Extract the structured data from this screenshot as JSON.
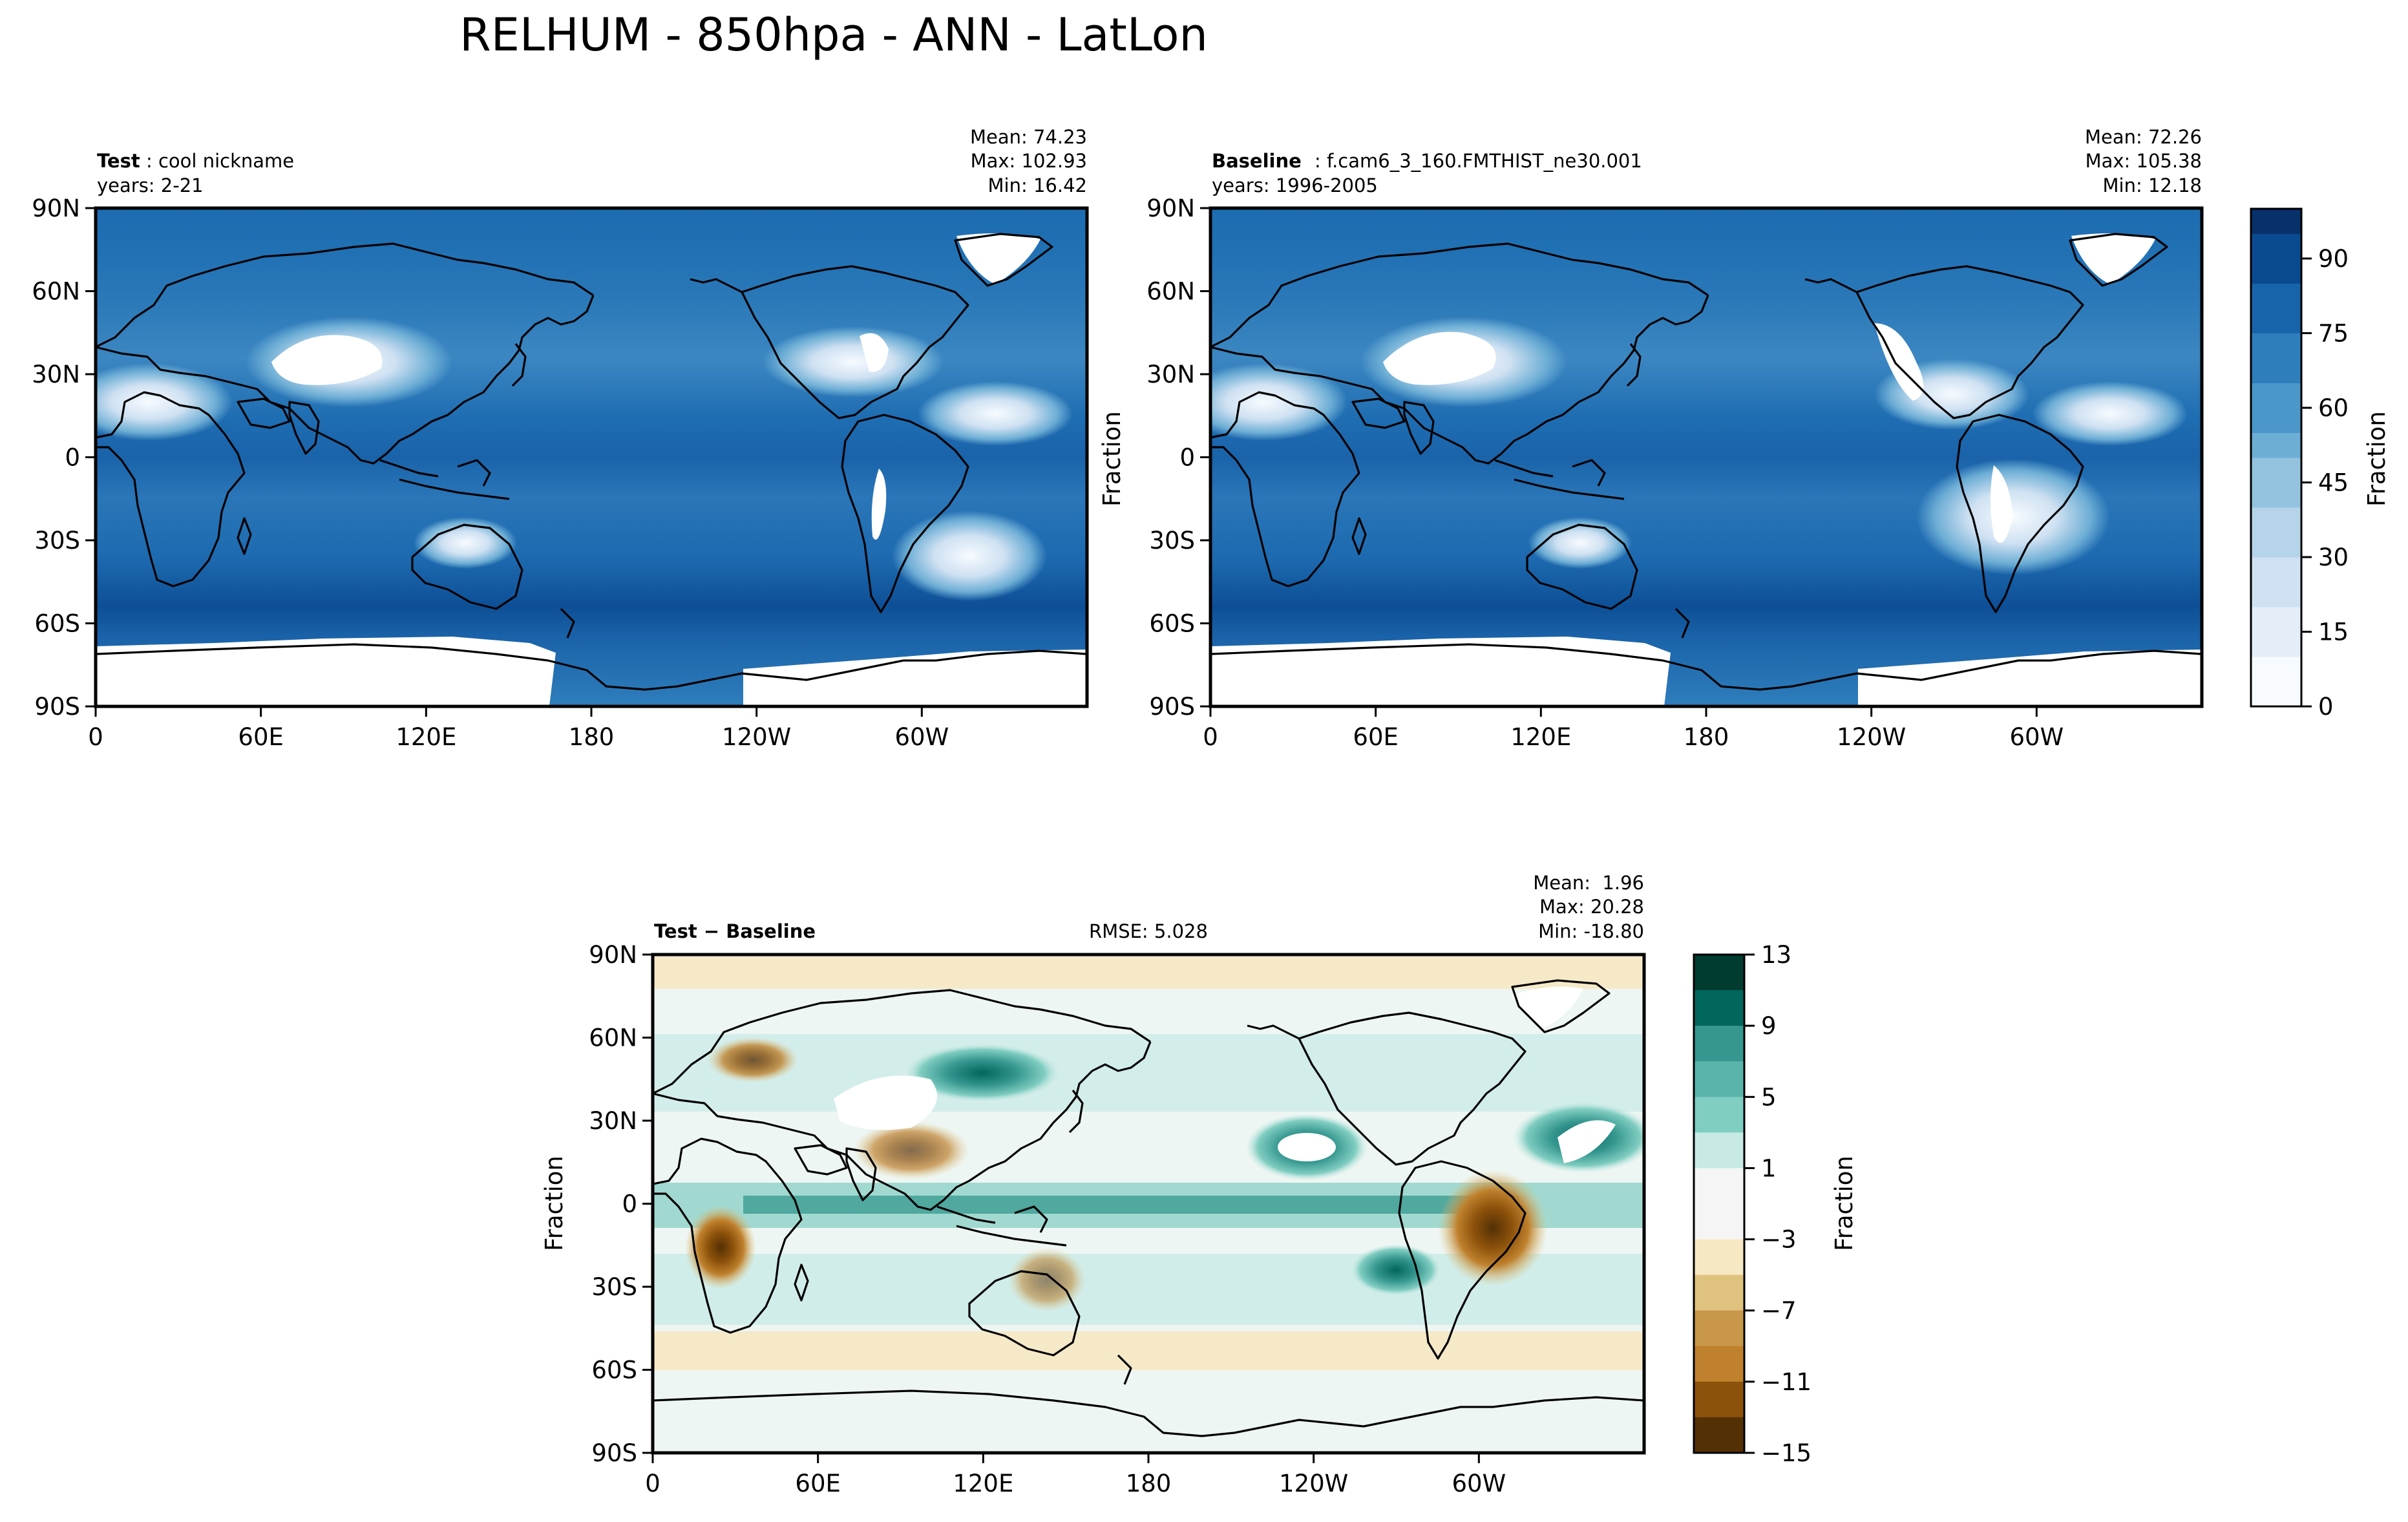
{
  "figure": {
    "title": "RELHUM - 850hpa - ANN - LatLon"
  },
  "chart_data": [
    {
      "type": "heatmap",
      "panel": "test",
      "label_bold": "Test",
      "label_rest": ": cool nickname",
      "years": "years: 2-21",
      "stats": [
        "Mean: 74.23",
        "Max: 102.93",
        "Min: 16.42"
      ],
      "stats_values": {
        "mean": 74.23,
        "max": 102.93,
        "min": 16.42
      },
      "ylabel": "",
      "xticks": [
        "0",
        "60E",
        "120E",
        "180",
        "120W",
        "60W"
      ],
      "yticks": [
        "90N",
        "60N",
        "30N",
        "0",
        "30S",
        "60S",
        "90S"
      ],
      "colormap": "Blues"
    },
    {
      "type": "heatmap",
      "panel": "baseline",
      "label_bold": "Baseline",
      "label_rest": ": f.cam6_3_160.FMTHIST_ne30.001",
      "years": "years: 1996-2005",
      "stats": [
        "Mean: 72.26",
        "Max: 105.38",
        "Min: 12.18"
      ],
      "stats_values": {
        "mean": 72.26,
        "max": 105.38,
        "min": 12.18
      },
      "ylabel": "Fraction",
      "xticks": [
        "0",
        "60E",
        "120E",
        "180",
        "120W",
        "60W"
      ],
      "yticks": [
        "90N",
        "60N",
        "30N",
        "0",
        "30S",
        "60S",
        "90S"
      ],
      "colormap": "Blues",
      "colorbar": {
        "label": "Fraction",
        "ticks": [
          "0",
          "15",
          "30",
          "45",
          "60",
          "75",
          "90"
        ],
        "range": [
          0,
          100
        ],
        "levels": 20
      }
    },
    {
      "type": "heatmap",
      "panel": "difference",
      "label_bold": "Test − Baseline",
      "rmse": "RMSE: 5.028",
      "stats": [
        "Mean:  1.96",
        "Max: 20.28",
        "Min: -18.80"
      ],
      "stats_values": {
        "mean": 1.96,
        "max": 20.28,
        "min": -18.8
      },
      "ylabel": "Fraction",
      "xticks": [
        "0",
        "60E",
        "120E",
        "180",
        "120W",
        "60W"
      ],
      "yticks": [
        "90N",
        "60N",
        "30N",
        "0",
        "30S",
        "60S",
        "90S"
      ],
      "colormap": "BrBG",
      "colorbar": {
        "label": "Fraction",
        "ticks": [
          "13",
          "9",
          "5",
          "1",
          "−3",
          "−7",
          "−11",
          "−15"
        ],
        "range": [
          -15,
          13
        ],
        "levels": 14
      }
    }
  ],
  "colors": {
    "blues": [
      "#f7fbff",
      "#e3eef9",
      "#cfe1f2",
      "#b5d4e9",
      "#93c3df",
      "#6daed5",
      "#4b97c9",
      "#2f7ebc",
      "#1864aa",
      "#0a4a90",
      "#08306b"
    ],
    "brbg": [
      "#003c30",
      "#01665e",
      "#35978f",
      "#80cdc1",
      "#c7eae5",
      "#f5f5f5",
      "#f6e8c3",
      "#dfc27d",
      "#bf812d",
      "#8c510a",
      "#543005"
    ]
  }
}
